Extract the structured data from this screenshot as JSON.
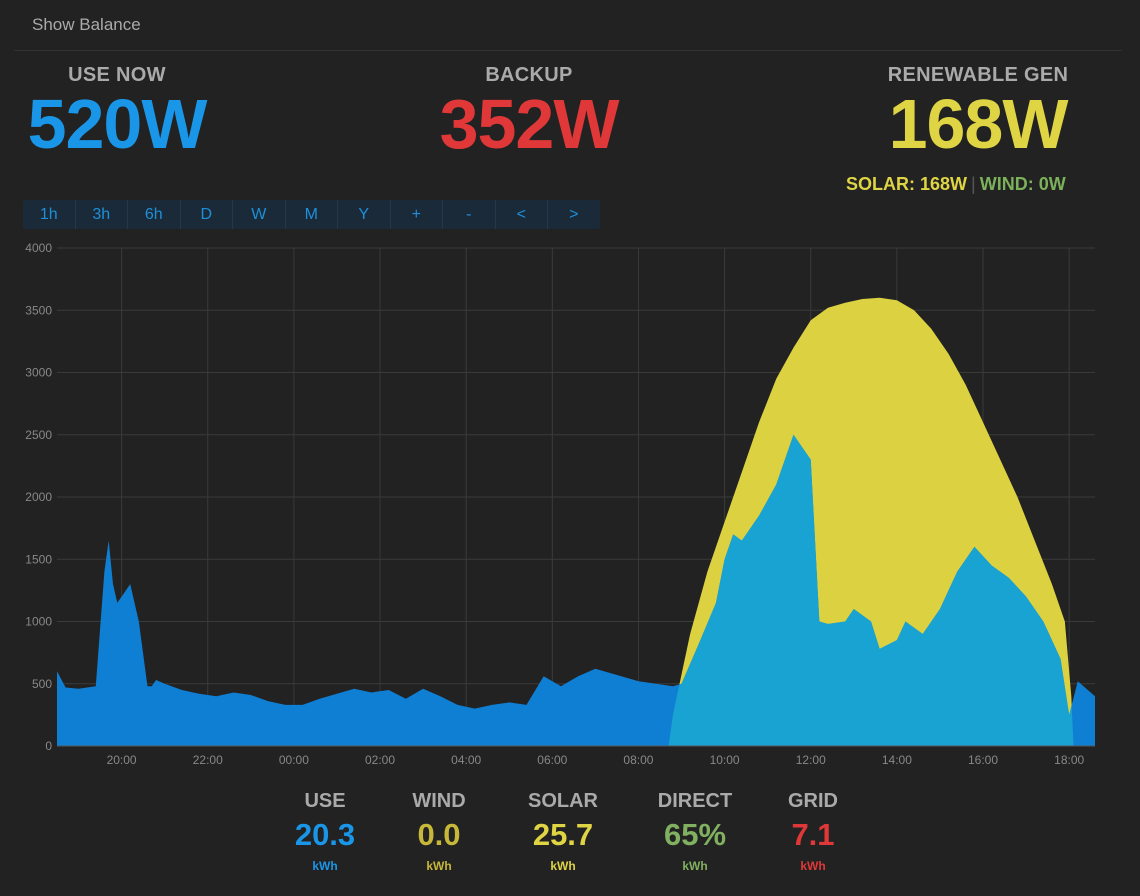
{
  "topbar": {
    "show_balance": "Show Balance"
  },
  "stats": {
    "use_now": {
      "label": "USE NOW",
      "value": "520W"
    },
    "backup": {
      "label": "BACKUP",
      "value": "352W"
    },
    "renewable": {
      "label": "RENEWABLE GEN",
      "value": "168W"
    },
    "solar_text": "SOLAR: 168W",
    "wind_text": "WIND: 0W",
    "separator": "|"
  },
  "colors": {
    "use": "#1a96e8",
    "backup": "#e03838",
    "renewable": "#dfd443",
    "wind": "#7cb05a",
    "direct": "#80b060",
    "wind_total": "#c8b83a",
    "chart_use": "#0f7fd4",
    "chart_direct": "#19a3d2",
    "chart_solar": "#dcd141"
  },
  "buttons": [
    "1h",
    "3h",
    "6h",
    "D",
    "W",
    "M",
    "Y",
    "+",
    "-",
    "<",
    ">"
  ],
  "chart_data": {
    "type": "area",
    "y_ticks": [
      0,
      500,
      1000,
      1500,
      2000,
      2500,
      3000,
      3500,
      4000
    ],
    "ylim": [
      0,
      4000
    ],
    "x_tick_labels": [
      "20:00",
      "22:00",
      "00:00",
      "02:00",
      "04:00",
      "06:00",
      "08:00",
      "10:00",
      "12:00",
      "14:00",
      "16:00",
      "18:00"
    ],
    "xlim_hours": [
      -5.5,
      18.6
    ],
    "grid": true,
    "series": [
      {
        "key": "use",
        "x": [
          -5.5,
          -5.3,
          -5.0,
          -4.6,
          -4.4,
          -4.3,
          -4.2,
          -4.1,
          -3.9,
          -3.8,
          -3.6,
          -3.4,
          -3.3,
          -3.2,
          -3.0,
          -2.6,
          -2.2,
          -1.8,
          -1.4,
          -1.0,
          -0.6,
          -0.2,
          0.2,
          0.6,
          1.0,
          1.4,
          1.8,
          2.2,
          2.6,
          3.0,
          3.4,
          3.8,
          4.2,
          4.6,
          5.0,
          5.4,
          5.8,
          6.2,
          6.6,
          7.0,
          7.6,
          8.0,
          8.4,
          8.8,
          9.0,
          9.4,
          9.8,
          10.0,
          10.2,
          10.4,
          10.8,
          11.2,
          11.6,
          12.0,
          12.2,
          12.4,
          12.8,
          13.0,
          13.4,
          13.6,
          14.0,
          14.2,
          14.6,
          15.0,
          15.4,
          15.8,
          16.2,
          16.6,
          17.0,
          17.4,
          17.8,
          18.0,
          18.2,
          18.6
        ],
        "y": [
          600,
          470,
          460,
          480,
          1400,
          1650,
          1300,
          1150,
          1250,
          1300,
          1000,
          480,
          480,
          530,
          500,
          450,
          420,
          400,
          430,
          410,
          360,
          330,
          330,
          380,
          420,
          460,
          430,
          450,
          380,
          460,
          400,
          330,
          300,
          330,
          350,
          330,
          560,
          480,
          560,
          620,
          560,
          520,
          500,
          480,
          500,
          820,
          1150,
          1500,
          1700,
          1650,
          1850,
          2100,
          2500,
          2300,
          1000,
          980,
          1000,
          1100,
          1000,
          780,
          850,
          1000,
          900,
          1100,
          1400,
          1600,
          1450,
          1350,
          1200,
          1000,
          700,
          250,
          520,
          400
        ]
      },
      {
        "key": "solar",
        "x": [
          8.7,
          8.8,
          9.2,
          9.6,
          10.0,
          10.4,
          10.8,
          11.2,
          11.6,
          12.0,
          12.4,
          12.8,
          13.2,
          13.6,
          14.0,
          14.4,
          14.8,
          15.2,
          15.6,
          16.0,
          16.4,
          16.8,
          17.2,
          17.6,
          17.9,
          18.05,
          18.1
        ],
        "y": [
          0,
          250,
          900,
          1400,
          1800,
          2200,
          2600,
          2950,
          3200,
          3420,
          3520,
          3560,
          3590,
          3600,
          3580,
          3500,
          3350,
          3150,
          2900,
          2600,
          2300,
          2000,
          1650,
          1300,
          1000,
          400,
          0
        ]
      }
    ]
  },
  "totals": [
    {
      "label": "USE",
      "value": "20.3",
      "unit": "kWh",
      "color": "#1a96e8"
    },
    {
      "label": "WIND",
      "value": "0.0",
      "unit": "kWh",
      "color": "#c8b83a"
    },
    {
      "label": "SOLAR",
      "value": "25.7",
      "unit": "kWh",
      "color": "#dfd443"
    },
    {
      "label": "DIRECT",
      "value": "65%",
      "unit": "kWh",
      "color": "#80b060"
    },
    {
      "label": "GRID",
      "value": "7.1",
      "unit": "kWh",
      "color": "#e03838"
    }
  ]
}
